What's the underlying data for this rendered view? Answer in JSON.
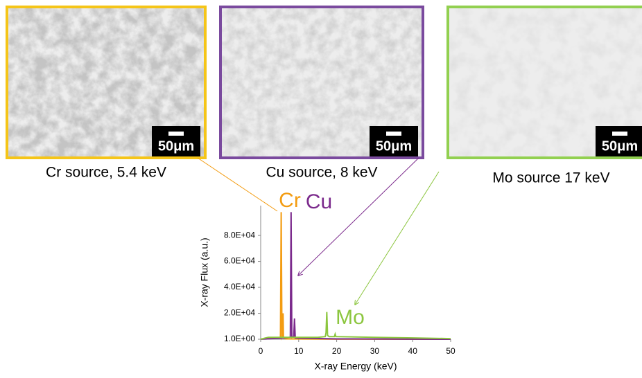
{
  "panels": [
    {
      "caption": "Cr source, 5.4 keV",
      "scale_label": "50μm",
      "color": "#f5c518"
    },
    {
      "caption": "Cu source, 8 keV",
      "scale_label": "50μm",
      "color": "#7a4a9e"
    },
    {
      "caption": "Mo source 17 keV",
      "scale_label": "50μm",
      "color": "#92d050"
    }
  ],
  "chart_data": {
    "type": "line",
    "x_label": "X-ray Energy (keV)",
    "y_label": "X-ray Flux (a.u.)",
    "xlim": [
      0,
      50
    ],
    "xticks": [
      0,
      10,
      20,
      30,
      40,
      50
    ],
    "ylim": [
      1,
      103000
    ],
    "yticks": [
      {
        "value": 1,
        "label": "1.0E+00"
      },
      {
        "value": 20000,
        "label": "2.0E+04"
      },
      {
        "value": 40000,
        "label": "4.0E+04"
      },
      {
        "value": 60000,
        "label": "6.0E+04"
      },
      {
        "value": 80000,
        "label": "8.0E+04"
      }
    ],
    "series": [
      {
        "name": "Cr",
        "color": "#f39c12",
        "x": [
          0,
          1,
          3,
          5,
          5.2,
          5.4,
          5.6,
          5.8,
          5.9,
          6.0,
          6.2,
          7,
          10,
          20,
          50
        ],
        "values": [
          1,
          500,
          800,
          1000,
          1000,
          98000,
          1000,
          2000,
          20000,
          1000,
          500,
          300,
          200,
          100,
          1
        ]
      },
      {
        "name": "Cu",
        "color": "#7b2a8c",
        "x": [
          0,
          5,
          7.8,
          8.0,
          8.2,
          8.7,
          8.9,
          9.1,
          10,
          20,
          50
        ],
        "values": [
          1,
          800,
          1500,
          98000,
          1500,
          2000,
          16000,
          1000,
          800,
          300,
          1
        ]
      },
      {
        "name": "Mo",
        "color": "#8cc63f",
        "x": [
          0,
          2,
          5,
          10,
          15,
          17,
          17.2,
          17.4,
          17.6,
          18,
          19.4,
          19.6,
          19.8,
          20,
          30,
          40,
          50
        ],
        "values": [
          1,
          1500,
          1500,
          1500,
          1500,
          2000,
          5000,
          21000,
          3000,
          2000,
          2000,
          4000,
          2000,
          2000,
          1500,
          1000,
          500
        ]
      }
    ]
  }
}
